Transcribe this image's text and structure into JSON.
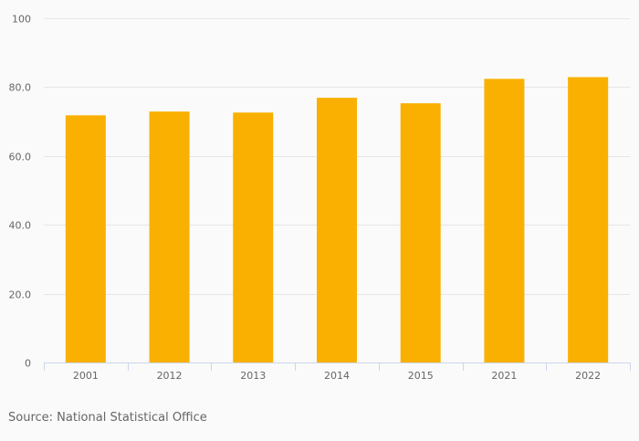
{
  "chart_data": {
    "type": "bar",
    "categories": [
      "2001",
      "2012",
      "2013",
      "2014",
      "2015",
      "2021",
      "2022"
    ],
    "values": [
      71.8,
      72.9,
      72.6,
      76.9,
      75.3,
      82.4,
      82.9
    ],
    "title": "",
    "xlabel": "",
    "ylabel": "",
    "ylim": [
      0,
      100
    ],
    "y_ticks": [
      {
        "value": 0,
        "label": "0"
      },
      {
        "value": 20,
        "label": "20.0"
      },
      {
        "value": 40,
        "label": "40.0"
      },
      {
        "value": 60,
        "label": "60.0"
      },
      {
        "value": 80,
        "label": "80.0"
      },
      {
        "value": 100,
        "label": "100"
      }
    ],
    "grid": true,
    "legend": "none",
    "bar_color": "#f9b000"
  },
  "source": "Source: National Statistical Office"
}
